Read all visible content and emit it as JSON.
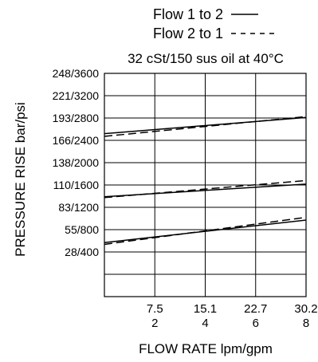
{
  "chart_data": {
    "type": "line",
    "legend": {
      "placement": "top",
      "entries": [
        {
          "label": "Flow 1 to 2",
          "style": "solid"
        },
        {
          "label": "Flow 2 to 1",
          "style": "dashed"
        }
      ]
    },
    "subtitle": "32 cSt/150 sus oil at 40°C",
    "ylabel": "PRESSURE RISE bar/psi",
    "xlabel": "FLOW RATE lpm/gpm",
    "y_ticks": [
      "248/3600",
      "221/3200",
      "193/2800",
      "166/2400",
      "138/2000",
      "110/1600",
      "83/1200",
      "55/800",
      "28/400"
    ],
    "x_ticks": [
      {
        "lpm": "7.5",
        "gpm": "2"
      },
      {
        "lpm": "15.1",
        "gpm": "4"
      },
      {
        "lpm": "22.7",
        "gpm": "6"
      },
      {
        "lpm": "30.2",
        "gpm": "8"
      }
    ],
    "xlim": [
      0,
      30.2
    ],
    "ylim": [
      0,
      248
    ],
    "grid": true,
    "series": [
      {
        "name": "Flow 1 to 2",
        "group": "high",
        "x": [
          0,
          30.2
        ],
        "y": [
          181,
          199
        ]
      },
      {
        "name": "Flow 2 to 1",
        "group": "high",
        "x": [
          0,
          30.2
        ],
        "y": [
          178,
          200
        ]
      },
      {
        "name": "Flow 1 to 2",
        "group": "mid",
        "x": [
          0,
          30.2
        ],
        "y": [
          111,
          125
        ]
      },
      {
        "name": "Flow 2 to 1",
        "group": "mid",
        "x": [
          0,
          30.2
        ],
        "y": [
          110,
          129
        ]
      },
      {
        "name": "Flow 1 to 2",
        "group": "low",
        "x": [
          0,
          30.2
        ],
        "y": [
          60,
          85
        ]
      },
      {
        "name": "Flow 2 to 1",
        "group": "low",
        "x": [
          0,
          30.2
        ],
        "y": [
          58,
          88
        ]
      }
    ]
  }
}
